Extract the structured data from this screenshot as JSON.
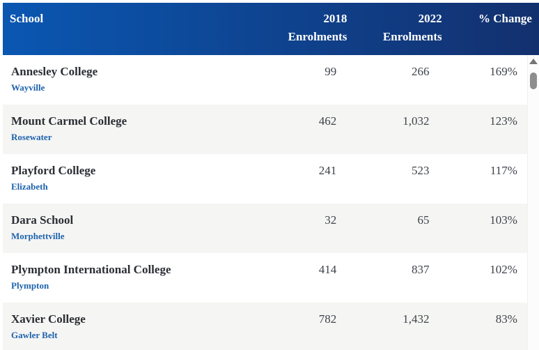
{
  "table": {
    "columns": [
      {
        "label": "School",
        "line1": "School",
        "line2": "",
        "align": "left"
      },
      {
        "label": "2018 Enrolments",
        "line1": "2018",
        "line2": "Enrolments",
        "align": "right"
      },
      {
        "label": "2022 Enrolments",
        "line1": "2022",
        "line2": "Enrolments",
        "align": "right"
      },
      {
        "label": "% Change",
        "line1": "% Change",
        "line2": "",
        "align": "right"
      }
    ],
    "rows": [
      {
        "school": "Annesley College",
        "location": "Wayville",
        "enrol2018": "99",
        "enrol2022": "266",
        "change": "169%"
      },
      {
        "school": "Mount Carmel College",
        "location": "Rosewater",
        "enrol2018": "462",
        "enrol2022": "1,032",
        "change": "123%"
      },
      {
        "school": "Playford College",
        "location": "Elizabeth",
        "enrol2018": "241",
        "enrol2022": "523",
        "change": "117%"
      },
      {
        "school": "Dara School",
        "location": "Morphettville",
        "enrol2018": "32",
        "enrol2022": "65",
        "change": "103%"
      },
      {
        "school": "Plympton International College",
        "location": "Plympton",
        "enrol2018": "414",
        "enrol2022": "837",
        "change": "102%"
      },
      {
        "school": "Xavier College",
        "location": "Gawler Belt",
        "enrol2018": "782",
        "enrol2022": "1,432",
        "change": "83%"
      }
    ]
  },
  "scrollbar": {
    "up_arrow_icon": "triangle-up"
  },
  "colors": {
    "header_grad_left": "#0a57b2",
    "header_grad_right": "#13306e",
    "header_text": "#ffffff",
    "row_bg": "#ffffff",
    "row_alt_bg": "#f5f5f3",
    "school_name": "#2b2e35",
    "location_blue": "#1e63ae",
    "number_text": "#3e434b",
    "scrollbar_track": "#fcfcfc",
    "scrollbar_arrow": "#757575",
    "scrollbar_thumb": "#8d8d8d"
  }
}
